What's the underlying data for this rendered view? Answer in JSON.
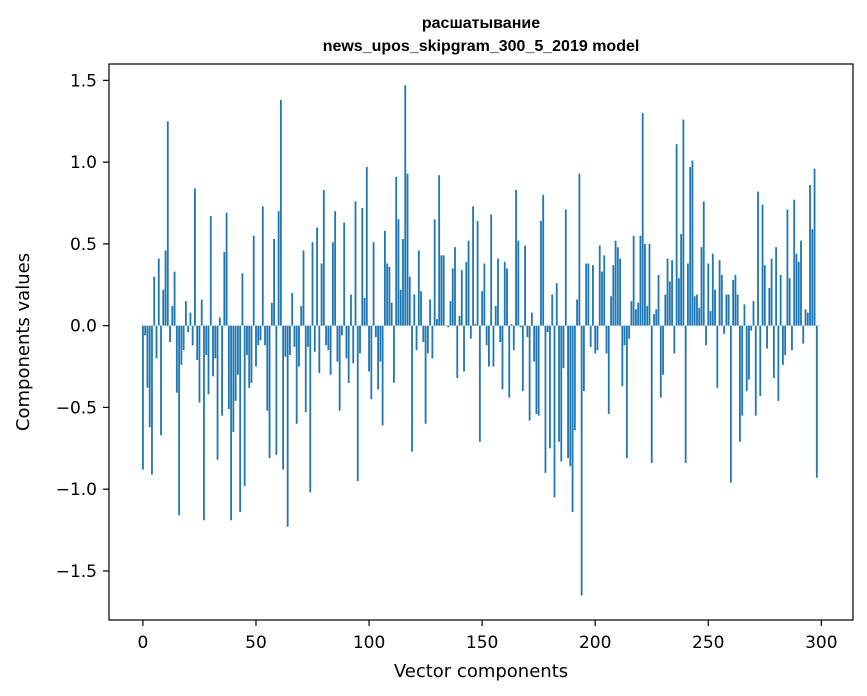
{
  "chart_data": {
    "type": "bar",
    "title": "расшатывание",
    "subtitle": "news_upos_skipgram_300_5_2019 model",
    "xlabel": "Vector components",
    "ylabel": "Components values",
    "xlim": [
      -15,
      314
    ],
    "ylim": [
      -1.8,
      1.6
    ],
    "xticks": [
      0,
      50,
      100,
      150,
      200,
      250,
      300
    ],
    "xtick_labels": [
      "0",
      "50",
      "100",
      "150",
      "200",
      "250",
      "300"
    ],
    "yticks": [
      1.5,
      1.0,
      0.5,
      0.0,
      -0.5,
      -1.0,
      -1.5
    ],
    "ytick_labels": [
      "1.5",
      "1.0",
      "0.5",
      "0.0",
      "−0.5",
      "−1.0",
      "−1.5"
    ],
    "grid": false,
    "legend": false,
    "bar_color": "#1f77b4",
    "x": "indices 0..299",
    "values": [
      -0.88,
      -0.06,
      -0.38,
      -0.62,
      -0.91,
      0.3,
      -0.2,
      0.41,
      -0.67,
      0.22,
      0.46,
      1.25,
      -0.1,
      0.12,
      0.33,
      -0.41,
      -1.16,
      -0.24,
      -0.15,
      0.15,
      -0.04,
      0.08,
      -0.12,
      0.84,
      -0.21,
      -0.47,
      0.16,
      -1.19,
      -0.18,
      -0.42,
      0.67,
      -0.31,
      -0.2,
      -0.82,
      0.05,
      -0.55,
      0.45,
      0.69,
      -0.51,
      -1.19,
      -0.65,
      -0.46,
      -0.3,
      -1.14,
      0.32,
      -0.98,
      -0.18,
      -0.38,
      -0.35,
      0.55,
      -0.25,
      -0.12,
      -0.09,
      0.73,
      -0.12,
      -0.52,
      -0.81,
      0.14,
      0.53,
      -0.79,
      0.7,
      1.38,
      -0.88,
      -0.19,
      -1.23,
      -0.18,
      0.2,
      -0.13,
      -0.6,
      -0.25,
      0.12,
      0.46,
      -0.53,
      -0.13,
      -1.02,
      0.51,
      -0.16,
      0.6,
      -0.29,
      0.38,
      0.83,
      -0.12,
      -0.15,
      -0.3,
      0.51,
      0.7,
      -0.22,
      -0.52,
      -0.06,
      0.63,
      -0.2,
      -0.35,
      0.19,
      -0.23,
      0.76,
      -0.95,
      -0.17,
      0.72,
      0.17,
      0.97,
      -0.28,
      -0.45,
      0.51,
      -0.07,
      -0.39,
      -0.22,
      -0.61,
      0.58,
      0.38,
      0.36,
      0.14,
      -0.35,
      0.91,
      0.65,
      0.22,
      0.53,
      1.47,
      0.93,
      0.3,
      -0.77,
      0.19,
      -0.15,
      0.46,
      0.21,
      -0.1,
      -0.6,
      -0.17,
      0.16,
      -0.2,
      0.65,
      0.04,
      0.92,
      0.43,
      0.43,
      0.0,
      -0.01,
      0.15,
      0.35,
      0.48,
      -0.32,
      0.06,
      0.34,
      -0.28,
      0.39,
      0.52,
      -0.08,
      0.73,
      0.01,
      0.64,
      -0.71,
      0.21,
      0.38,
      -0.12,
      -0.25,
      0.68,
      -0.25,
      0.12,
      0.41,
      -0.1,
      -0.39,
      0.39,
      0.35,
      -0.44,
      0.01,
      -0.15,
      0.83,
      0.52,
      -0.01,
      -0.4,
      0.49,
      -0.07,
      -0.58,
      0.08,
      -0.22,
      -0.54,
      -0.55,
      0.64,
      0.8,
      -0.9,
      -0.04,
      -0.75,
      0.19,
      -1.05,
      0.26,
      -0.71,
      -0.83,
      -0.26,
      0.71,
      -0.81,
      -0.86,
      -1.14,
      -0.64,
      0.16,
      0.93,
      -1.65,
      -0.4,
      0.38,
      0.38,
      -0.13,
      0.37,
      -0.17,
      -0.15,
      0.49,
      0.33,
      0.43,
      -0.17,
      -0.54,
      0.18,
      0.37,
      0.52,
      0.48,
      0.41,
      -0.37,
      -0.12,
      -0.81,
      -0.08,
      0.15,
      0.55,
      0.1,
      0.14,
      0.55,
      1.3,
      0.5,
      0.12,
      0.5,
      -0.84,
      0.07,
      0.1,
      0.31,
      -0.44,
      -0.3,
      0.19,
      0.41,
      0.27,
      0.4,
      -0.17,
      1.11,
      0.29,
      0.56,
      1.26,
      -0.84,
      0.38,
      0.97,
      1.01,
      0.18,
      0.19,
      0.11,
      0.48,
      0.76,
      -0.12,
      0.38,
      0.09,
      0.44,
      0.22,
      -0.38,
      0.4,
      0.31,
      -0.05,
      0.19,
      0.19,
      -0.96,
      0.28,
      0.31,
      0.19,
      -0.71,
      -0.55,
      0.13,
      -0.4,
      -0.33,
      -0.03,
      0.15,
      -0.55,
      0.82,
      -0.43,
      0.74,
      0.37,
      -0.14,
      0.23,
      0.41,
      -0.32,
      0.48,
      -0.46,
      0.31,
      -0.24,
      -0.18,
      0.71,
      0.29,
      -0.15,
      0.77,
      0.44,
      0.39,
      0.52,
      -0.11,
      0.1,
      0.08,
      0.86,
      0.59,
      0.96,
      -0.93,
      0.0
    ]
  }
}
